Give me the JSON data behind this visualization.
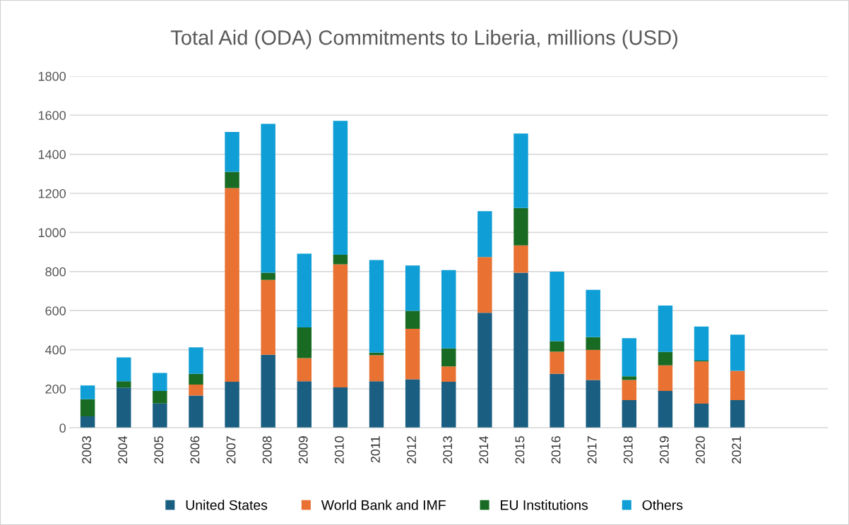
{
  "chart_data": {
    "type": "bar",
    "title": "Total Aid (ODA) Commitments to Liberia, millions (USD)",
    "stacked": true,
    "categories": [
      "2003",
      "2004",
      "2005",
      "2006",
      "2007",
      "2008",
      "2009",
      "2010",
      "2011",
      "2012",
      "2013",
      "2014",
      "2015",
      "2016",
      "2017",
      "2018",
      "2019",
      "2020",
      "2021"
    ],
    "series": [
      {
        "name": "United States",
        "color": "#1a5f82",
        "values": [
          59,
          206,
          125,
          166,
          236,
          374,
          239,
          207,
          239,
          249,
          236,
          589,
          794,
          277,
          245,
          142,
          189,
          124,
          142
        ]
      },
      {
        "name": "World Bank and IMF",
        "color": "#e97132",
        "values": [
          0,
          0,
          0,
          56,
          991,
          383,
          118,
          630,
          133,
          258,
          79,
          285,
          140,
          113,
          154,
          103,
          131,
          216,
          150
        ]
      },
      {
        "name": "EU Institutions",
        "color": "#196b24",
        "values": [
          88,
          33,
          64,
          55,
          83,
          37,
          157,
          49,
          13,
          92,
          92,
          0,
          191,
          54,
          65,
          19,
          69,
          4,
          0
        ]
      },
      {
        "name": "Others",
        "color": "#0f9ed5",
        "values": [
          70,
          122,
          92,
          135,
          204,
          762,
          377,
          685,
          474,
          232,
          400,
          235,
          381,
          355,
          242,
          195,
          237,
          175,
          185
        ]
      }
    ],
    "ylim": [
      0,
      1800
    ],
    "yticks": [
      0,
      200,
      400,
      600,
      800,
      1000,
      1200,
      1400,
      1600,
      1800
    ],
    "grid": "y",
    "legend": "bottom"
  }
}
